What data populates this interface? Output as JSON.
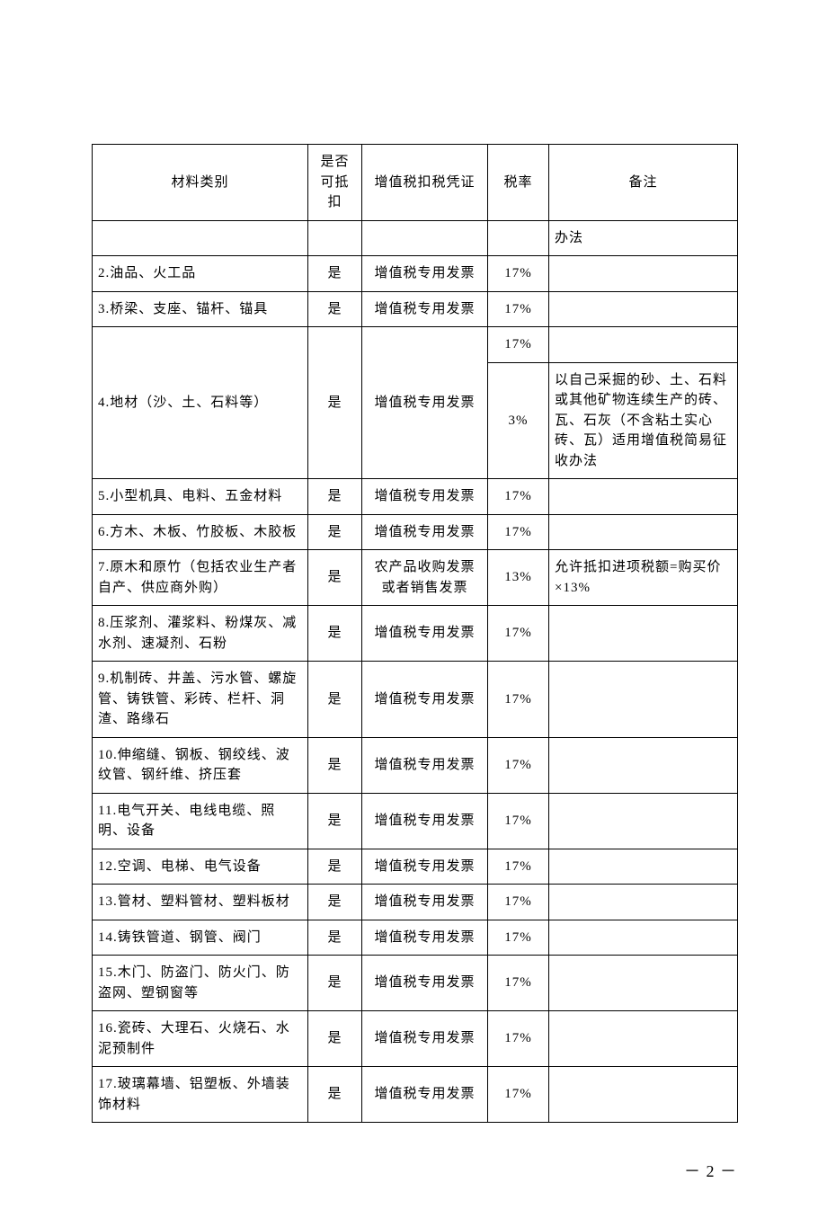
{
  "headers": {
    "c1": "材料类别",
    "c2": "是否可抵扣",
    "c3": "增值税扣税凭证",
    "c4": "税率",
    "c5": "备注"
  },
  "carryover": "办法",
  "rows": [
    {
      "name": "2.油品、火工品",
      "deduct": "是",
      "voucher": "增值税专用发票",
      "rate": "17%",
      "note": ""
    },
    {
      "name": "3.桥梁、支座、锚杆、锚具",
      "deduct": "是",
      "voucher": "增值税专用发票",
      "rate": "17%",
      "note": ""
    }
  ],
  "row4": {
    "name": "4.地材（沙、土、石料等）",
    "deduct": "是",
    "voucher": "增值税专用发票",
    "rate1": "17%",
    "note1": "",
    "rate2": "3%",
    "note2": "以自己采掘的砂、土、石料或其他矿物连续生产的砖、瓦、石灰（不含粘土实心砖、瓦）适用增值税简易征收办法"
  },
  "rows2": [
    {
      "name": "5.小型机具、电料、五金材料",
      "deduct": "是",
      "voucher": "增值税专用发票",
      "rate": "17%",
      "note": ""
    },
    {
      "name": "6.方木、木板、竹胶板、木胶板",
      "deduct": "是",
      "voucher": "增值税专用发票",
      "rate": "17%",
      "note": ""
    },
    {
      "name": "7.原木和原竹（包括农业生产者自产、供应商外购）",
      "deduct": "是",
      "voucher": "农产品收购发票或者销售发票",
      "rate": "13%",
      "note": "允许抵扣进项税额=购买价×13%"
    },
    {
      "name": "8.压浆剂、灌浆料、粉煤灰、减水剂、速凝剂、石粉",
      "deduct": "是",
      "voucher": "增值税专用发票",
      "rate": "17%",
      "note": ""
    },
    {
      "name": "9.机制砖、井盖、污水管、螺旋管、铸铁管、彩砖、栏杆、洞渣、路缘石",
      "deduct": "是",
      "voucher": "增值税专用发票",
      "rate": "17%",
      "note": ""
    },
    {
      "name": "10.伸缩缝、钢板、钢绞线、波纹管、钢纤维、挤压套",
      "deduct": "是",
      "voucher": "增值税专用发票",
      "rate": "17%",
      "note": ""
    },
    {
      "name": "11.电气开关、电线电缆、照明、设备",
      "deduct": "是",
      "voucher": "增值税专用发票",
      "rate": "17%",
      "note": ""
    },
    {
      "name": "12.空调、电梯、电气设备",
      "deduct": "是",
      "voucher": "增值税专用发票",
      "rate": "17%",
      "note": ""
    },
    {
      "name": "13.管材、塑料管材、塑料板材",
      "deduct": "是",
      "voucher": "增值税专用发票",
      "rate": "17%",
      "note": ""
    },
    {
      "name": "14.铸铁管道、钢管、阀门",
      "deduct": "是",
      "voucher": "增值税专用发票",
      "rate": "17%",
      "note": ""
    },
    {
      "name": "15.木门、防盗门、防火门、防盗网、塑钢窗等",
      "deduct": "是",
      "voucher": "增值税专用发票",
      "rate": "17%",
      "note": ""
    },
    {
      "name": "16.瓷砖、大理石、火烧石、水泥预制件",
      "deduct": "是",
      "voucher": "增值税专用发票",
      "rate": "17%",
      "note": ""
    },
    {
      "name": "17.玻璃幕墙、铝塑板、外墙装饰材料",
      "deduct": "是",
      "voucher": "增值税专用发票",
      "rate": "17%",
      "note": ""
    }
  ],
  "pageNumber": "－ 2 －"
}
